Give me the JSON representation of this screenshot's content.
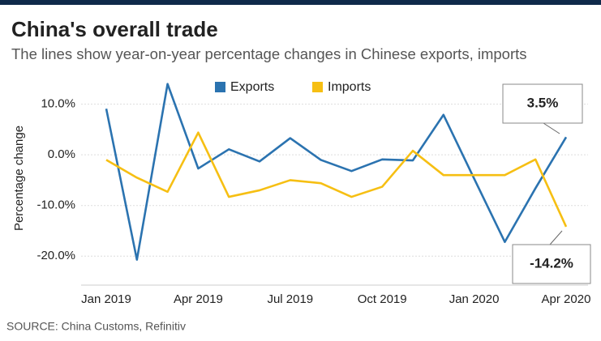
{
  "chart_data": {
    "type": "line",
    "title": "China's overall trade",
    "subtitle": "The lines show year-on-year percentage changes in Chinese exports, imports",
    "y_label": "Percentage change",
    "source": "SOURCE: China Customs, Refinitiv",
    "categories": [
      "Jan 2019",
      null,
      null,
      "Apr 2019",
      null,
      null,
      "Jul 2019",
      null,
      null,
      "Oct 2019",
      null,
      null,
      "Jan 2020",
      null,
      null,
      "Apr 2020"
    ],
    "series": [
      {
        "name": "Exports",
        "color": "#2b73b0",
        "values": [
          9.1,
          -20.7,
          14.0,
          -2.7,
          1.1,
          -1.3,
          3.3,
          -1.0,
          -3.2,
          -0.9,
          -1.1,
          7.9,
          -4.7,
          -17.2,
          -6.6,
          3.5
        ],
        "value_labels": [
          null,
          null,
          null,
          null,
          null,
          null,
          null,
          null,
          null,
          null,
          null,
          null,
          null,
          null,
          null,
          "3.5%"
        ]
      },
      {
        "name": "Imports",
        "color": "#f6bf13",
        "values": [
          -1.0,
          -4.5,
          -7.3,
          4.4,
          -8.3,
          -7.0,
          -5.0,
          -5.6,
          -8.3,
          -6.3,
          0.8,
          -4.0,
          -4.0,
          -4.0,
          -0.9,
          -14.2
        ],
        "value_labels": [
          null,
          null,
          null,
          null,
          null,
          null,
          null,
          null,
          null,
          null,
          null,
          null,
          null,
          null,
          null,
          "-14.2%"
        ]
      }
    ],
    "ylim": [
      -25.4,
      16.5
    ],
    "yticks": [
      {
        "value": 10,
        "label": "10.0%"
      },
      {
        "value": 0,
        "label": "0.0%"
      },
      {
        "value": -10,
        "label": "-10.0%"
      },
      {
        "value": -20,
        "label": "-20.0%"
      }
    ],
    "grid": true,
    "legend": "top"
  }
}
